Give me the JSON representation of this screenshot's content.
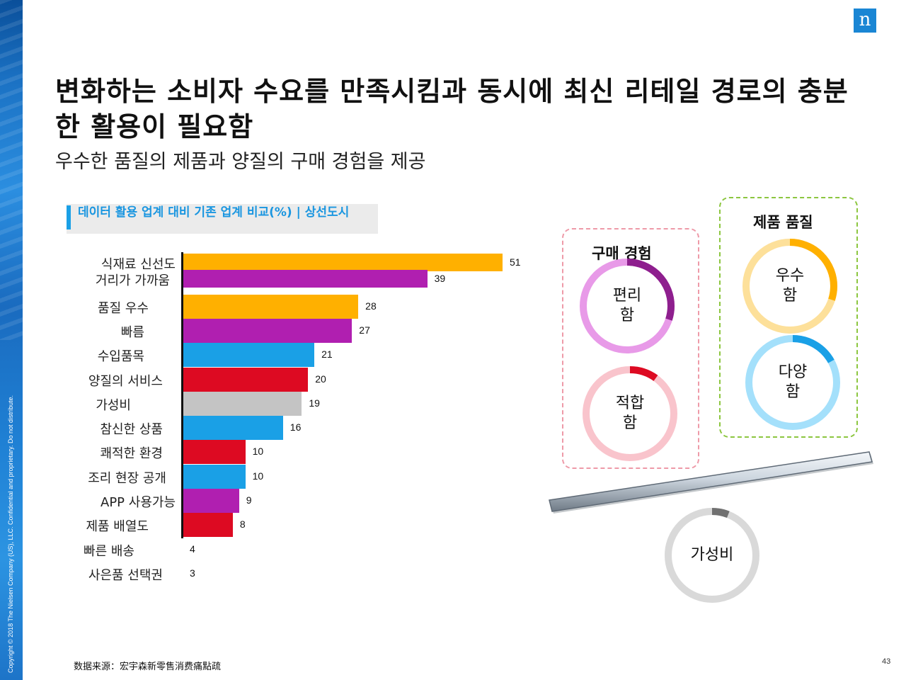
{
  "title": "변화하는 소비자 수요를 만족시킴과 동시에 최신 리테일 경로의 충분한 활용이 필요함",
  "subtitle": "우수한 품질의 제품과 양질의 구매 경험을 제공",
  "logo_text": "n",
  "copyright": "Copyright © 2018 The Nielsen Company (US), LLC. Confidential and proprietary. Do not distribute.",
  "source_text": "数据来源：宏宇森新零售消费痛點疏",
  "page_number": "43",
  "chart_data": {
    "type": "bar",
    "orientation": "horizontal",
    "title": "데이터 활용 업계 대비 기존 업계 비교(%) | 상선도시",
    "categories": [
      "식재료 신선도",
      "거리가 가까움",
      "품질 우수",
      "빠름",
      "수입품목",
      "양질의 서비스",
      "가성비",
      "참신한 상품",
      "쾌적한 환경",
      "조리 현장 공개",
      "APP 사용가능",
      "제품 배열도",
      "빠른 배송",
      "사은품 선택권"
    ],
    "values": [
      51,
      39,
      28,
      27,
      21,
      20,
      19,
      16,
      10,
      10,
      9,
      8,
      4,
      3
    ],
    "bar_colors": [
      "#ffb000",
      "#b01fb0",
      "#ffb000",
      "#b01fb0",
      "#1aa0e6",
      "#dd0a22",
      "#c4c4c4",
      "#1aa0e6",
      "#dd0a22",
      "#1aa0e6",
      "#b01fb0",
      "#dd0a22",
      "#dd0a22",
      "#dd0a22"
    ],
    "xlim": [
      0,
      55
    ]
  },
  "groups": {
    "purchase": {
      "title": "구매 경험",
      "border_color": "#ee9aa8"
    },
    "quality": {
      "title": "제품 품질",
      "border_color": "#8cc63f"
    }
  },
  "donuts": [
    {
      "label": "편리함",
      "line1": "편리",
      "line2": "함",
      "fraction": 0.3,
      "color": "#8e1f8e",
      "track": "#e89ae8"
    },
    {
      "label": "적합함",
      "line1": "적합",
      "line2": "함",
      "fraction": 0.1,
      "color": "#dd0a22",
      "track": "#f9c4cc"
    },
    {
      "label": "우수함",
      "line1": "우수",
      "line2": "함",
      "fraction": 0.3,
      "color": "#ffb000",
      "track": "#fde09a"
    },
    {
      "label": "다양함",
      "line1": "다양",
      "line2": "함",
      "fraction": 0.17,
      "color": "#1aa0e6",
      "track": "#a4e0fb"
    },
    {
      "label": "가성비",
      "line1": "가성비",
      "line2": "",
      "fraction": 0.06,
      "color": "#707070",
      "track": "#d9d9d9"
    }
  ]
}
